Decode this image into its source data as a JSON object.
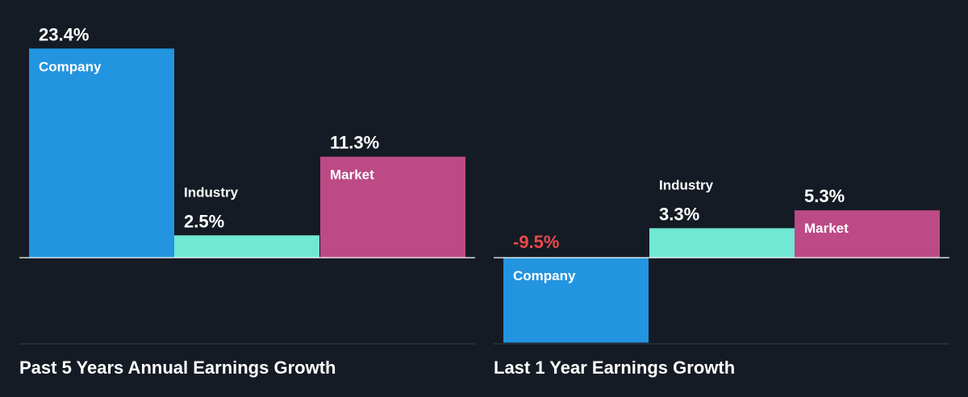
{
  "colors": {
    "background": "#151b24",
    "company": "#2394e0",
    "industry": "#70e8d4",
    "market": "#bc4a86",
    "negative_label": "#e84b4b",
    "axis": "#ffffff",
    "divider": "#3c424c"
  },
  "chart_data": [
    {
      "type": "bar",
      "title": "Past 5 Years Annual Earnings Growth",
      "categories": [
        "Company",
        "Industry",
        "Market"
      ],
      "values": [
        23.4,
        2.5,
        11.3
      ],
      "value_labels": [
        "23.4%",
        "2.5%",
        "11.3%"
      ],
      "ylim": [
        -9.5,
        23.4
      ],
      "grid": false
    },
    {
      "type": "bar",
      "title": "Last 1 Year Earnings Growth",
      "categories": [
        "Company",
        "Industry",
        "Market"
      ],
      "values": [
        -9.5,
        3.3,
        5.3
      ],
      "value_labels": [
        "-9.5%",
        "3.3%",
        "5.3%"
      ],
      "ylim": [
        -9.5,
        23.4
      ],
      "grid": false
    }
  ]
}
